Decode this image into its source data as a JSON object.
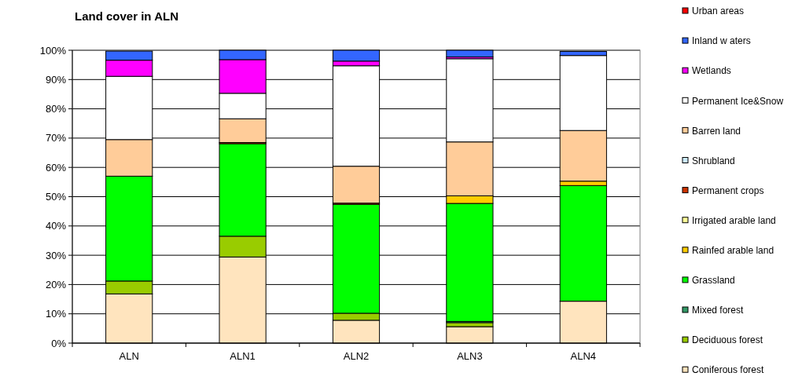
{
  "chart_data": {
    "type": "bar",
    "title": "Land cover in ALN",
    "stacked": true,
    "categories": [
      "ALN",
      "ALN1",
      "ALN2",
      "ALN3",
      "ALN4"
    ],
    "ylim": [
      0,
      100
    ],
    "yticks": [
      {
        "value": 0,
        "label": "0%"
      },
      {
        "value": 10,
        "label": "10%"
      },
      {
        "value": 20,
        "label": "20%"
      },
      {
        "value": 30,
        "label": "30%"
      },
      {
        "value": 40,
        "label": "40%"
      },
      {
        "value": 50,
        "label": "50%"
      },
      {
        "value": 60,
        "label": "60%"
      },
      {
        "value": 70,
        "label": "70%"
      },
      {
        "value": 80,
        "label": "80%"
      },
      {
        "value": 90,
        "label": "90%"
      },
      {
        "value": 100,
        "label": "100%"
      }
    ],
    "grid": "y",
    "legend": "right",
    "series": [
      {
        "name": "Coniferous forest",
        "color": "#ffe4be",
        "values": [
          16.8,
          29.4,
          7.8,
          5.6,
          14.3
        ]
      },
      {
        "name": "Deciduous forest",
        "color": "#99cc00",
        "values": [
          4.4,
          7.1,
          2.4,
          1.4,
          0
        ]
      },
      {
        "name": "Mixed forest",
        "color": "#339966",
        "values": [
          0,
          0,
          0,
          0.4,
          0
        ]
      },
      {
        "name": "Grassland",
        "color": "#00ff00",
        "values": [
          35.8,
          31.6,
          37.2,
          40.3,
          39.5
        ]
      },
      {
        "name": "Rainfed arable land",
        "color": "#ffcc00",
        "values": [
          0,
          0,
          0,
          2.6,
          1.5
        ]
      },
      {
        "name": "Irrigated arable land",
        "color": "#ffff99",
        "values": [
          0,
          0,
          0,
          0,
          0
        ]
      },
      {
        "name": "Permanent crops",
        "color": "#cc3300",
        "values": [
          null,
          0.4,
          0.4,
          0,
          0
        ]
      },
      {
        "name": "Shrubland",
        "color": "#ccecff",
        "values": [
          0,
          0,
          0,
          0,
          0
        ]
      },
      {
        "name": "Barren land",
        "color": "#ffcc99",
        "values": [
          12.5,
          8.1,
          12.6,
          18.4,
          17.3
        ]
      },
      {
        "name": "Permanent Ice&Snow",
        "color": "#ffffff",
        "values": [
          21.6,
          8.7,
          34.3,
          28.4,
          25.6
        ]
      },
      {
        "name": "Wetlands",
        "color": "#ff00ff",
        "values": [
          5.5,
          11.5,
          1.6,
          0.6,
          null
        ]
      },
      {
        "name": "Inland w aters",
        "color": "#3366ff",
        "values": [
          3.1,
          3.2,
          3.7,
          2.3,
          1.4
        ]
      },
      {
        "name": "Urban areas",
        "color": "#ff0000",
        "values": [
          0,
          0,
          0,
          0,
          0
        ]
      }
    ]
  }
}
